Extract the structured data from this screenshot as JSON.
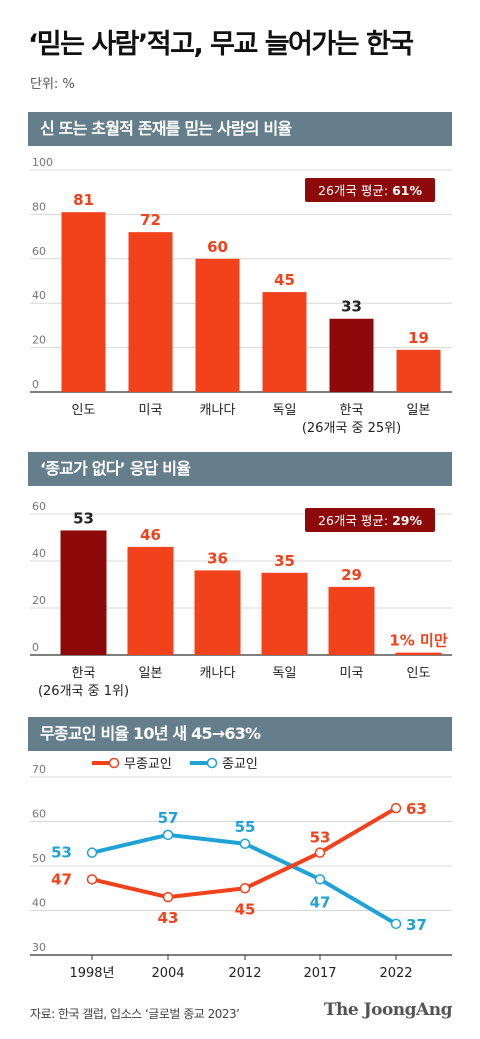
{
  "header": {
    "title": "‘믿는 사람’적고, 무교 늘어가는 한국",
    "unit": "단위: %"
  },
  "colors": {
    "orange": "#f2421b",
    "dark_red": "#8e0a0a",
    "blue": "#1fa3d6",
    "section_bg": "#647e8c"
  },
  "chart_data": [
    {
      "type": "bar",
      "title": "신 또는 초월적 존재를 믿는 사람의 비율",
      "categories": [
        "인도",
        "미국",
        "캐나다",
        "독일",
        "한국",
        "일본"
      ],
      "category_sublabels": [
        "",
        "",
        "",
        "",
        "(26개국 중 25위)",
        ""
      ],
      "values": [
        81,
        72,
        60,
        45,
        33,
        19
      ],
      "highlight_index": 4,
      "ylim": [
        0,
        100
      ],
      "yticks": [
        0,
        20,
        40,
        60,
        80,
        100
      ],
      "badge": {
        "label": "26개국 평균:",
        "value": "61%"
      }
    },
    {
      "type": "bar",
      "title": "‘종교가 없다’ 응답 비율",
      "categories": [
        "한국",
        "일본",
        "캐나다",
        "독일",
        "미국",
        "인도"
      ],
      "category_sublabels": [
        "(26개국 중 1위)",
        "",
        "",
        "",
        "",
        ""
      ],
      "values": [
        53,
        46,
        36,
        35,
        29,
        1
      ],
      "value_labels": [
        "53",
        "46",
        "36",
        "35",
        "29",
        "1% 미만"
      ],
      "highlight_index": 0,
      "ylim": [
        0,
        60
      ],
      "yticks": [
        0,
        20,
        40,
        60
      ],
      "badge": {
        "label": "26개국 평균:",
        "value": "29%"
      }
    },
    {
      "type": "line",
      "title": "무종교인 비율 10년 새 45→63%",
      "x": [
        "1998년",
        "2004",
        "2012",
        "2017",
        "2022"
      ],
      "series": [
        {
          "name": "무종교인",
          "color": "#f2421b",
          "values": [
            47,
            43,
            45,
            53,
            63
          ]
        },
        {
          "name": "종교인",
          "color": "#1fa3d6",
          "values": [
            53,
            57,
            55,
            47,
            37
          ]
        }
      ],
      "ylim": [
        30,
        70
      ],
      "yticks": [
        30,
        40,
        50,
        60,
        70
      ]
    }
  ],
  "footer": {
    "source": "자료: 한국 갤럽, 입소스 ‘글로벌 종교 2023’",
    "logo": "The JoongAng"
  }
}
